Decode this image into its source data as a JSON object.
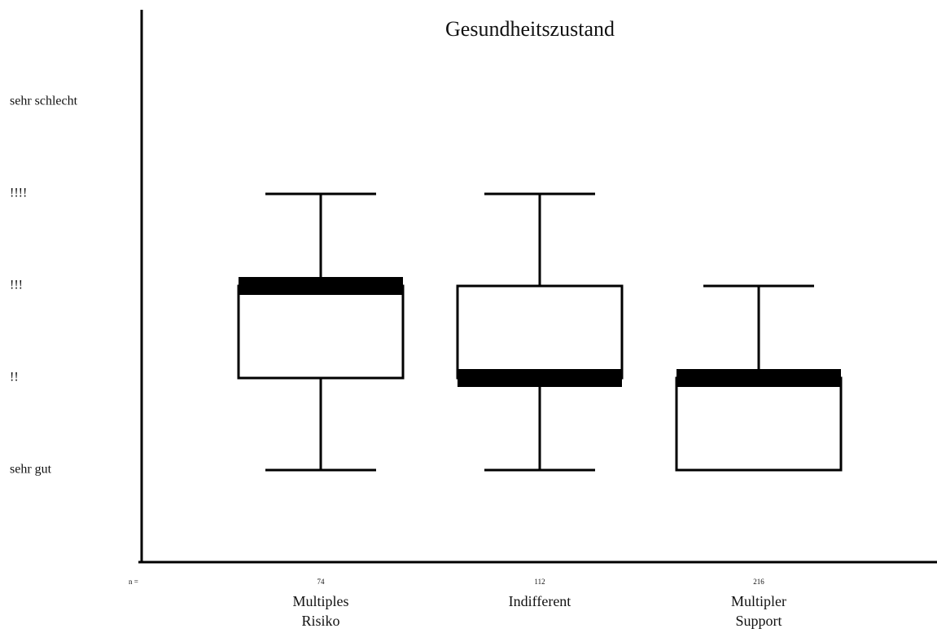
{
  "chart_data": {
    "type": "box",
    "title": "Gesundheitszustand",
    "categories": [
      [
        "Multiples",
        "Risiko"
      ],
      [
        "Indifferent"
      ],
      [
        "Multipler",
        "Support"
      ]
    ],
    "n_label": "n =",
    "n": [
      74,
      112,
      216
    ],
    "boxes": [
      {
        "min": 1,
        "q1": 2,
        "median": 3,
        "q3": 3,
        "max": 4
      },
      {
        "min": 1,
        "q1": 2,
        "median": 2,
        "q3": 3,
        "max": 4
      },
      {
        "min": 1,
        "q1": 1,
        "median": 2,
        "q3": 2,
        "max": 3
      }
    ],
    "ylim": [
      0,
      6
    ],
    "yticks": [
      {
        "value": 1,
        "label": "sehr gut"
      },
      {
        "value": 2,
        "label": "!!"
      },
      {
        "value": 3,
        "label": "!!!"
      },
      {
        "value": 4,
        "label": "!!!!"
      },
      {
        "value": 5,
        "label": "sehr schlecht"
      }
    ],
    "color": "#000000"
  }
}
